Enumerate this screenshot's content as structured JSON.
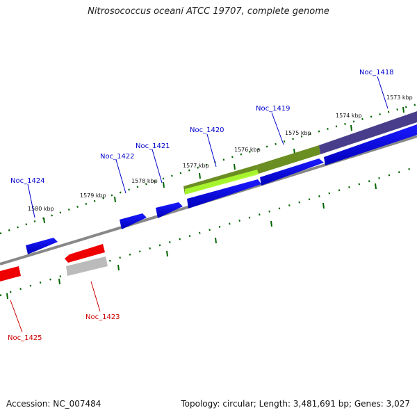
{
  "title": "Nitrosococcus oceani ATCC 19707, complete genome",
  "footer": {
    "accession": "Accession: NC_007484",
    "summary": "Topology: circular; Length: 3,481,691 bp; Genes: 3,027"
  },
  "colors": {
    "forward": "#0000ee",
    "reverse": "#ee0000",
    "olive": "#6b8e23",
    "lightgreen": "#adff2f",
    "darkslate": "#483d8b",
    "grey": "#bbbbbb",
    "backbone": "#888888",
    "tick": "#006400"
  },
  "scale_labels": [
    "1580 kbp",
    "1579 kbp",
    "1578 kbp",
    "1577 kbp",
    "1576 kbp",
    "1575 kbp",
    "1574 kbp",
    "1573 kbp"
  ],
  "genes": [
    {
      "name": "Noc_1418",
      "strand": "forward"
    },
    {
      "name": "Noc_1419",
      "strand": "forward"
    },
    {
      "name": "Noc_1420",
      "strand": "forward"
    },
    {
      "name": "Noc_1421",
      "strand": "forward"
    },
    {
      "name": "Noc_1422",
      "strand": "forward"
    },
    {
      "name": "Noc_1424",
      "strand": "forward"
    },
    {
      "name": "Noc_1423",
      "strand": "reverse"
    },
    {
      "name": "Noc_1425",
      "strand": "reverse"
    }
  ]
}
